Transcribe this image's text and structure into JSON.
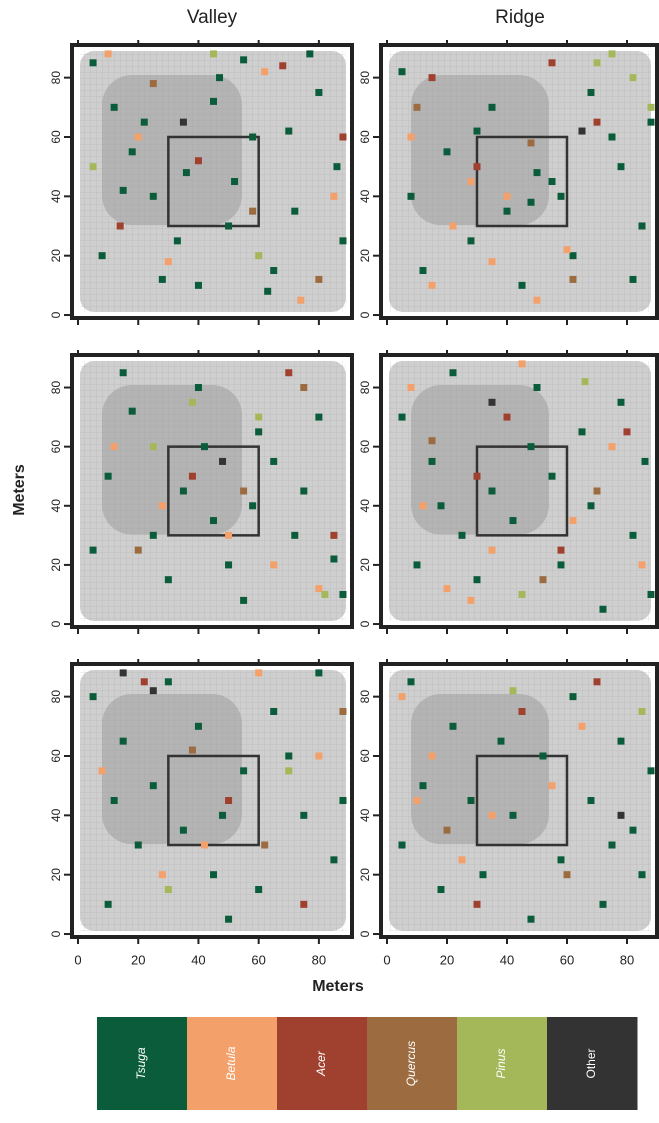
{
  "column_titles": [
    "Valley",
    "Ridge"
  ],
  "xlabel": "Meters",
  "ylabel": "Meters",
  "species": [
    {
      "name": "Tsuga",
      "color": "#0b5c3a",
      "italic": true
    },
    {
      "name": "Betula",
      "color": "#f4a06a",
      "italic": true
    },
    {
      "name": "Acer",
      "color": "#a0402e",
      "italic": true
    },
    {
      "name": "Quercus",
      "color": "#9c6b40",
      "italic": true
    },
    {
      "name": "Pinus",
      "color": "#a4b85a",
      "italic": true
    },
    {
      "name": "Other",
      "color": "#333333",
      "italic": false
    }
  ],
  "chart_data": [
    {
      "type": "scatter",
      "xlim": [
        -2,
        91
      ],
      "ylim": [
        -1,
        91
      ],
      "xticks": [
        0,
        20,
        40,
        60,
        80
      ],
      "yticks": [
        0,
        20,
        40,
        60,
        80
      ],
      "show_xtick_labels": false,
      "highlight_box": {
        "x": [
          30,
          60
        ],
        "y": [
          30,
          60
        ]
      },
      "series": [
        {
          "x": [
            5,
            12,
            18,
            25,
            33,
            40,
            47,
            52,
            58,
            65,
            72,
            80,
            86,
            8,
            22,
            36,
            50,
            63,
            77,
            88,
            15,
            45,
            70,
            28,
            55
          ],
          "y": [
            85,
            70,
            55,
            40,
            25,
            10,
            80,
            45,
            60,
            15,
            35,
            75,
            50,
            20,
            65,
            48,
            30,
            8,
            88,
            25,
            42,
            72,
            62,
            12,
            86
          ]
        },
        {
          "x": [
            10,
            30,
            62,
            85,
            20,
            74
          ],
          "y": [
            88,
            18,
            82,
            40,
            60,
            5
          ]
        },
        {
          "x": [
            68,
            40,
            88,
            14
          ],
          "y": [
            84,
            52,
            60,
            30
          ]
        },
        {
          "x": [
            25,
            58,
            80
          ],
          "y": [
            78,
            35,
            12
          ]
        },
        {
          "x": [
            45,
            60,
            5
          ],
          "y": [
            88,
            20,
            50
          ]
        },
        {
          "x": [
            35
          ],
          "y": [
            65
          ]
        }
      ]
    },
    {
      "type": "scatter",
      "xlim": [
        -2,
        90
      ],
      "ylim": [
        -1,
        91
      ],
      "xticks": [
        0,
        20,
        40,
        60,
        80
      ],
      "yticks": [
        0,
        20,
        40,
        60,
        80
      ],
      "show_xtick_labels": false,
      "highlight_box": {
        "x": [
          30,
          60
        ],
        "y": [
          30,
          60
        ]
      },
      "series": [
        {
          "x": [
            8,
            20,
            35,
            48,
            55,
            62,
            75,
            85,
            12,
            28,
            40,
            50,
            68,
            82,
            5,
            30,
            45,
            58,
            78,
            88
          ],
          "y": [
            40,
            55,
            70,
            38,
            45,
            20,
            60,
            30,
            15,
            25,
            35,
            48,
            75,
            12,
            82,
            62,
            10,
            40,
            50,
            65
          ]
        },
        {
          "x": [
            22,
            35,
            50,
            28,
            40,
            15,
            60,
            8
          ],
          "y": [
            30,
            18,
            5,
            45,
            40,
            10,
            22,
            60
          ]
        },
        {
          "x": [
            15,
            30,
            55,
            70
          ],
          "y": [
            80,
            50,
            85,
            65
          ]
        },
        {
          "x": [
            10,
            48,
            62
          ],
          "y": [
            70,
            58,
            12
          ]
        },
        {
          "x": [
            75,
            82,
            88,
            70
          ],
          "y": [
            88,
            80,
            70,
            85
          ]
        },
        {
          "x": [
            65
          ],
          "y": [
            62
          ]
        }
      ]
    },
    {
      "type": "scatter",
      "xlim": [
        -2,
        91
      ],
      "ylim": [
        -1,
        91
      ],
      "xticks": [
        0,
        20,
        40,
        60,
        80
      ],
      "yticks": [
        0,
        20,
        40,
        60,
        80
      ],
      "show_xtick_labels": false,
      "highlight_box": {
        "x": [
          30,
          60
        ],
        "y": [
          30,
          60
        ]
      },
      "series": [
        {
          "x": [
            10,
            18,
            25,
            35,
            42,
            50,
            58,
            65,
            72,
            80,
            88,
            5,
            30,
            45,
            60,
            75,
            15,
            40,
            55,
            85
          ],
          "y": [
            50,
            72,
            30,
            45,
            60,
            20,
            40,
            55,
            30,
            70,
            10,
            25,
            15,
            35,
            65,
            45,
            85,
            80,
            8,
            22
          ]
        },
        {
          "x": [
            12,
            50,
            80,
            28,
            65
          ],
          "y": [
            60,
            30,
            12,
            40,
            20
          ]
        },
        {
          "x": [
            70,
            38,
            85
          ],
          "y": [
            85,
            50,
            30
          ]
        },
        {
          "x": [
            75,
            20,
            55
          ],
          "y": [
            80,
            25,
            45
          ]
        },
        {
          "x": [
            25,
            38,
            60,
            82
          ],
          "y": [
            60,
            75,
            70,
            10
          ]
        },
        {
          "x": [
            48
          ],
          "y": [
            55
          ]
        }
      ]
    },
    {
      "type": "scatter",
      "xlim": [
        -2,
        90
      ],
      "ylim": [
        -1,
        91
      ],
      "xticks": [
        0,
        20,
        40,
        60,
        80
      ],
      "yticks": [
        0,
        20,
        40,
        60,
        80
      ],
      "show_xtick_labels": false,
      "highlight_box": {
        "x": [
          30,
          60
        ],
        "y": [
          30,
          60
        ]
      },
      "series": [
        {
          "x": [
            5,
            15,
            25,
            35,
            48,
            58,
            68,
            78,
            88,
            10,
            22,
            42,
            55,
            65,
            82,
            30,
            50,
            72,
            86,
            18
          ],
          "y": [
            70,
            55,
            30,
            45,
            60,
            20,
            40,
            75,
            10,
            20,
            85,
            35,
            50,
            65,
            30,
            15,
            80,
            5,
            55,
            40
          ]
        },
        {
          "x": [
            8,
            20,
            35,
            45,
            62,
            75,
            28,
            12,
            85
          ],
          "y": [
            80,
            12,
            25,
            88,
            35,
            60,
            8,
            40,
            20
          ]
        },
        {
          "x": [
            40,
            58,
            80,
            30
          ],
          "y": [
            70,
            25,
            65,
            50
          ]
        },
        {
          "x": [
            52,
            15,
            70
          ],
          "y": [
            15,
            62,
            45
          ]
        },
        {
          "x": [
            66,
            45
          ],
          "y": [
            82,
            10
          ]
        },
        {
          "x": [
            35
          ],
          "y": [
            75
          ]
        }
      ]
    },
    {
      "type": "scatter",
      "xlim": [
        -2,
        91
      ],
      "ylim": [
        -1,
        91
      ],
      "xticks": [
        0,
        20,
        40,
        60,
        80
      ],
      "yticks": [
        0,
        20,
        40,
        60,
        80
      ],
      "show_xtick_labels": true,
      "highlight_box": {
        "x": [
          30,
          60
        ],
        "y": [
          30,
          60
        ]
      },
      "series": [
        {
          "x": [
            5,
            15,
            25,
            35,
            45,
            55,
            65,
            75,
            85,
            10,
            30,
            50,
            70,
            88,
            20,
            40,
            60,
            80,
            12,
            48
          ],
          "y": [
            80,
            65,
            50,
            35,
            20,
            55,
            75,
            40,
            25,
            10,
            85,
            5,
            60,
            45,
            30,
            70,
            15,
            88,
            45,
            40
          ]
        },
        {
          "x": [
            8,
            28,
            60,
            80,
            42
          ],
          "y": [
            55,
            20,
            88,
            60,
            30
          ]
        },
        {
          "x": [
            22,
            50,
            75
          ],
          "y": [
            85,
            45,
            10
          ]
        },
        {
          "x": [
            38,
            62,
            88
          ],
          "y": [
            62,
            30,
            75
          ]
        },
        {
          "x": [
            30,
            70
          ],
          "y": [
            15,
            55
          ]
        },
        {
          "x": [
            15,
            25
          ],
          "y": [
            88,
            82
          ]
        }
      ]
    },
    {
      "type": "scatter",
      "xlim": [
        -2,
        90
      ],
      "ylim": [
        -1,
        91
      ],
      "xticks": [
        0,
        20,
        40,
        60,
        80
      ],
      "yticks": [
        0,
        20,
        40,
        60,
        80
      ],
      "show_xtick_labels": true,
      "highlight_box": {
        "x": [
          30,
          60
        ],
        "y": [
          30,
          60
        ]
      },
      "series": [
        {
          "x": [
            5,
            12,
            22,
            32,
            42,
            52,
            62,
            72,
            82,
            88,
            8,
            18,
            28,
            38,
            48,
            58,
            68,
            78,
            75,
            85
          ],
          "y": [
            30,
            50,
            70,
            20,
            40,
            60,
            80,
            10,
            35,
            55,
            85,
            15,
            45,
            65,
            5,
            25,
            45,
            65,
            30,
            20
          ]
        },
        {
          "x": [
            5,
            15,
            35,
            55,
            25,
            10,
            65
          ],
          "y": [
            80,
            60,
            40,
            50,
            25,
            45,
            70
          ]
        },
        {
          "x": [
            45,
            70,
            30
          ],
          "y": [
            75,
            85,
            10
          ]
        },
        {
          "x": [
            60,
            20
          ],
          "y": [
            20,
            35
          ]
        },
        {
          "x": [
            42,
            85
          ],
          "y": [
            82,
            75
          ]
        },
        {
          "x": [
            78
          ],
          "y": [
            40
          ]
        }
      ]
    }
  ]
}
